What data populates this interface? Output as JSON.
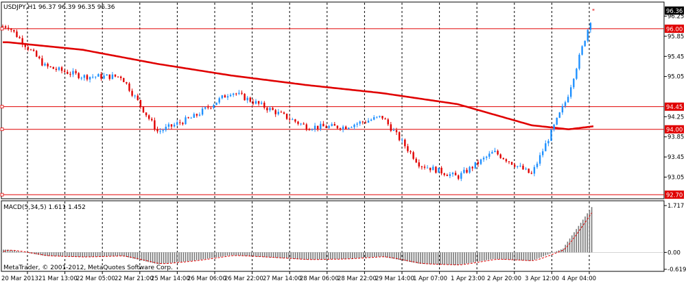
{
  "colors": {
    "bull": "#1e90ff",
    "bear": "#e00000",
    "ma": "#e00000",
    "level": "#e00000",
    "macd_bar": "#777777",
    "signal": "#e00000",
    "frame": "#000000",
    "grid": "#000000"
  },
  "main_header": "USDJPY,H1  96.37 96.39 96.35 96.36",
  "macd_header": "MACD(5,34,5) 1.611 1.452",
  "copyright": "MetaTrader, © 2001-2012, MetaQuotes Software Corp.",
  "price_axis": {
    "ticks": [
      "96.25",
      "95.85",
      "95.45",
      "95.05",
      "94.25",
      "93.85",
      "93.45",
      "93.05"
    ],
    "tick_values": [
      96.25,
      95.85,
      95.45,
      95.05,
      94.25,
      93.85,
      93.45,
      93.05
    ],
    "current_price": "96.36",
    "current_price_value": 96.36
  },
  "macd_axis": {
    "labels": [
      "1.717",
      "0.00",
      "-0.619"
    ],
    "values": [
      1.717,
      0.0,
      -0.619
    ]
  },
  "time_axis": {
    "labels": [
      "20 Mar 2013",
      "21 Mar 13:00",
      "22 Mar 05:00",
      "22 Mar 21:00",
      "25 Mar 14:00",
      "26 Mar 06:00",
      "26 Mar 22:00",
      "27 Mar 14:00",
      "28 Mar 06:00",
      "28 Mar 22:00",
      "29 Mar 14:00",
      "1 Apr 07:00",
      "1 Apr 23:00",
      "2 Apr 20:00",
      "3 Apr 12:00",
      "4 Apr 04:00"
    ]
  },
  "chart_data": [
    {
      "type": "candlestick",
      "symbol": "USDJPY",
      "timeframe": "H1",
      "ohlc_header": {
        "open": 96.37,
        "high": 96.39,
        "low": 96.35,
        "close": 96.36
      },
      "y_range": [
        92.62,
        96.53
      ],
      "horizontal_levels": [
        96.0,
        94.45,
        94.0,
        92.7
      ],
      "level_labels": [
        "96.00",
        "94.45",
        "94.00",
        "92.70"
      ],
      "close_path": [
        {
          "t": "20 Mar 2013",
          "close": 96.05
        },
        {
          "t": "21 Mar 13:00",
          "close": 95.25
        },
        {
          "t": "22 Mar 05:00",
          "close": 95.05
        },
        {
          "t": "22 Mar 21:00",
          "close": 95.05
        },
        {
          "t": "25 Mar 14:00",
          "close": 93.95
        },
        {
          "t": "26 Mar 06:00",
          "close": 94.25
        },
        {
          "t": "26 Mar 22:00",
          "close": 94.75
        },
        {
          "t": "27 Mar 14:00",
          "close": 94.4
        },
        {
          "t": "28 Mar 06:00",
          "close": 94.05
        },
        {
          "t": "28 Mar 22:00",
          "close": 94.05
        },
        {
          "t": "29 Mar 14:00",
          "close": 94.25
        },
        {
          "t": "1 Apr 07:00",
          "close": 93.3
        },
        {
          "t": "1 Apr 23:00",
          "close": 93.05
        },
        {
          "t": "2 Apr 20:00",
          "close": 93.55
        },
        {
          "t": "3 Apr 12:00",
          "close": 93.1
        },
        {
          "t": "4 Apr 04:00",
          "close": 94.6
        },
        {
          "t": "end",
          "close": 96.36
        }
      ],
      "moving_average": [
        {
          "t": "20 Mar 2013",
          "value": 95.73
        },
        {
          "t": "22 Mar 05:00",
          "value": 95.58
        },
        {
          "t": "25 Mar 14:00",
          "value": 95.3
        },
        {
          "t": "26 Mar 22:00",
          "value": 95.07
        },
        {
          "t": "28 Mar 06:00",
          "value": 94.88
        },
        {
          "t": "29 Mar 14:00",
          "value": 94.72
        },
        {
          "t": "1 Apr 23:00",
          "value": 94.5
        },
        {
          "t": "3 Apr 12:00",
          "value": 94.08
        },
        {
          "t": "4 Apr 04:00",
          "value": 94.0
        },
        {
          "t": "end",
          "value": 94.06
        }
      ]
    },
    {
      "type": "bar",
      "indicator": "MACD(5,34,5)",
      "macd": 1.611,
      "signal": 1.452,
      "y_range": [
        -0.619,
        1.717
      ]
    }
  ]
}
